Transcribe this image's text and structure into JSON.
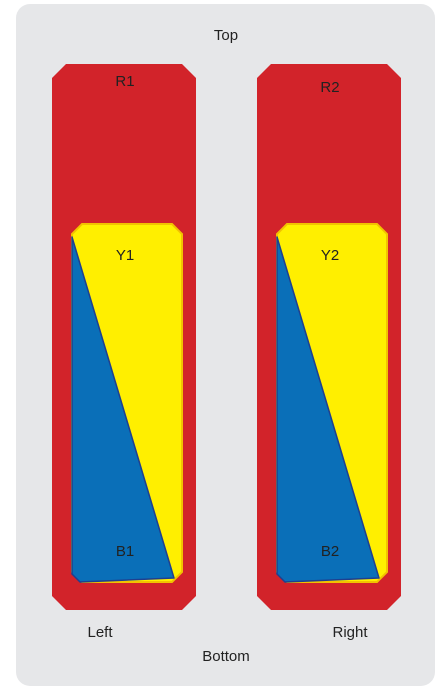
{
  "labels": {
    "top": "Top",
    "bottom": "Bottom",
    "left": "Left",
    "right": "Right"
  },
  "left_column": {
    "red_label": "R1",
    "yellow_label": "Y1",
    "blue_label": "B1"
  },
  "right_column": {
    "red_label": "R2",
    "yellow_label": "Y2",
    "blue_label": "B2"
  },
  "colors": {
    "panel": "#e6e7e9",
    "red": "#d2232a",
    "yellow": "#ffef00",
    "yellow_stroke": "#f2c200",
    "blue": "#0a6fb8",
    "blue_stroke": "#1f3f8f"
  }
}
